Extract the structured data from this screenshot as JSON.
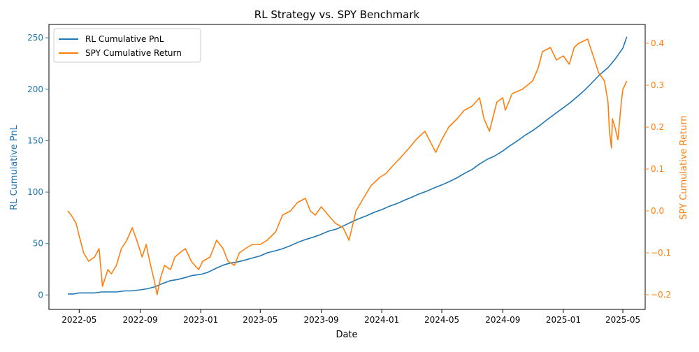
{
  "chart_data": {
    "type": "line",
    "title": "RL Strategy vs. SPY Benchmark",
    "xlabel": "Date",
    "ylabel_left": "RL Cumulative PnL",
    "ylabel_right": "SPY Cumulative Return",
    "x_ticks": [
      "2022-05",
      "2022-09",
      "2023-01",
      "2023-05",
      "2023-09",
      "2024-01",
      "2024-05",
      "2024-09",
      "2025-01",
      "2025-05"
    ],
    "x_range": [
      "2022-03-01",
      "2025-06-15"
    ],
    "y_left_ticks": [
      "0",
      "50",
      "100",
      "150",
      "200",
      "250"
    ],
    "y_left_range": [
      -14,
      263
    ],
    "y_right_ticks": [
      "−0.2",
      "−0.1",
      "0.0",
      "0.1",
      "0.2",
      "0.3",
      "0.4"
    ],
    "y_right_range": [
      -0.235,
      0.445
    ],
    "grid": false,
    "legend_position": "top-left",
    "colors": {
      "rl": "#1f77b4",
      "spy": "#ff7f0e",
      "axis": "#000000"
    },
    "series": [
      {
        "name": "RL Cumulative PnL",
        "axis": "left",
        "x": [
          "2022-04-08",
          "2022-04-20",
          "2022-05-01",
          "2022-05-15",
          "2022-06-01",
          "2022-06-15",
          "2022-07-01",
          "2022-07-15",
          "2022-08-01",
          "2022-08-15",
          "2022-09-01",
          "2022-09-15",
          "2022-10-01",
          "2022-10-15",
          "2022-11-01",
          "2022-11-15",
          "2022-12-01",
          "2022-12-15",
          "2023-01-01",
          "2023-01-15",
          "2023-02-01",
          "2023-02-15",
          "2023-03-01",
          "2023-03-15",
          "2023-04-01",
          "2023-04-15",
          "2023-05-01",
          "2023-05-15",
          "2023-06-01",
          "2023-06-15",
          "2023-07-01",
          "2023-07-15",
          "2023-08-01",
          "2023-08-15",
          "2023-09-01",
          "2023-09-15",
          "2023-10-01",
          "2023-10-15",
          "2023-11-01",
          "2023-11-15",
          "2023-12-01",
          "2023-12-15",
          "2024-01-01",
          "2024-01-15",
          "2024-02-01",
          "2024-02-15",
          "2024-03-01",
          "2024-03-15",
          "2024-04-01",
          "2024-04-15",
          "2024-05-01",
          "2024-05-15",
          "2024-06-01",
          "2024-06-15",
          "2024-07-01",
          "2024-07-15",
          "2024-08-01",
          "2024-08-15",
          "2024-09-01",
          "2024-09-15",
          "2024-10-01",
          "2024-10-15",
          "2024-11-01",
          "2024-11-15",
          "2024-12-01",
          "2024-12-15",
          "2025-01-01",
          "2025-01-15",
          "2025-02-01",
          "2025-02-15",
          "2025-03-01",
          "2025-03-15",
          "2025-04-01",
          "2025-04-15",
          "2025-05-01",
          "2025-05-09"
        ],
        "values": [
          1,
          1,
          2,
          2,
          2,
          3,
          3,
          3,
          4,
          4,
          5,
          6,
          8,
          11,
          14,
          15,
          17,
          19,
          20,
          22,
          26,
          29,
          31,
          32,
          34,
          36,
          38,
          41,
          43,
          45,
          48,
          51,
          54,
          56,
          59,
          62,
          64,
          67,
          71,
          74,
          77,
          80,
          83,
          86,
          89,
          92,
          95,
          98,
          101,
          104,
          107,
          110,
          114,
          118,
          122,
          127,
          132,
          135,
          140,
          145,
          150,
          155,
          160,
          165,
          171,
          176,
          182,
          187,
          194,
          200,
          207,
          214,
          221,
          229,
          240,
          251
        ]
      },
      {
        "name": "SPY Cumulative Return",
        "axis": "right",
        "x": [
          "2022-04-08",
          "2022-04-15",
          "2022-04-25",
          "2022-05-01",
          "2022-05-10",
          "2022-05-20",
          "2022-06-01",
          "2022-06-10",
          "2022-06-17",
          "2022-06-28",
          "2022-07-05",
          "2022-07-15",
          "2022-07-25",
          "2022-08-05",
          "2022-08-16",
          "2022-08-25",
          "2022-09-05",
          "2022-09-13",
          "2022-09-20",
          "2022-09-30",
          "2022-10-05",
          "2022-10-12",
          "2022-10-20",
          "2022-11-01",
          "2022-11-10",
          "2022-11-20",
          "2022-12-01",
          "2022-12-13",
          "2022-12-20",
          "2022-12-28",
          "2023-01-05",
          "2023-01-20",
          "2023-02-02",
          "2023-02-15",
          "2023-02-25",
          "2023-03-10",
          "2023-03-20",
          "2023-04-01",
          "2023-04-15",
          "2023-05-01",
          "2023-05-15",
          "2023-06-01",
          "2023-06-15",
          "2023-07-01",
          "2023-07-15",
          "2023-07-31",
          "2023-08-10",
          "2023-08-20",
          "2023-09-01",
          "2023-09-15",
          "2023-09-30",
          "2023-10-15",
          "2023-10-27",
          "2023-11-10",
          "2023-11-25",
          "2023-12-10",
          "2023-12-28",
          "2024-01-10",
          "2024-01-25",
          "2024-02-10",
          "2024-02-25",
          "2024-03-10",
          "2024-03-28",
          "2024-04-10",
          "2024-04-19",
          "2024-05-01",
          "2024-05-15",
          "2024-06-01",
          "2024-06-15",
          "2024-07-01",
          "2024-07-16",
          "2024-07-25",
          "2024-08-05",
          "2024-08-20",
          "2024-09-01",
          "2024-09-06",
          "2024-09-20",
          "2024-10-10",
          "2024-10-31",
          "2024-11-11",
          "2024-11-20",
          "2024-12-06",
          "2024-12-18",
          "2025-01-01",
          "2025-01-13",
          "2025-01-23",
          "2025-02-01",
          "2025-02-19",
          "2025-03-05",
          "2025-03-13",
          "2025-03-25",
          "2025-04-01",
          "2025-04-04",
          "2025-04-08",
          "2025-04-10",
          "2025-04-15",
          "2025-04-21",
          "2025-04-28",
          "2025-05-01",
          "2025-05-09"
        ],
        "values": [
          0.0,
          -0.01,
          -0.03,
          -0.06,
          -0.1,
          -0.12,
          -0.11,
          -0.09,
          -0.18,
          -0.14,
          -0.15,
          -0.13,
          -0.09,
          -0.07,
          -0.04,
          -0.07,
          -0.11,
          -0.08,
          -0.12,
          -0.17,
          -0.2,
          -0.16,
          -0.13,
          -0.14,
          -0.11,
          -0.1,
          -0.09,
          -0.12,
          -0.13,
          -0.14,
          -0.12,
          -0.11,
          -0.07,
          -0.09,
          -0.12,
          -0.13,
          -0.1,
          -0.09,
          -0.08,
          -0.08,
          -0.07,
          -0.05,
          -0.01,
          0.0,
          0.02,
          0.03,
          0.0,
          -0.01,
          0.01,
          -0.01,
          -0.03,
          -0.04,
          -0.07,
          0.0,
          0.03,
          0.06,
          0.08,
          0.09,
          0.11,
          0.13,
          0.15,
          0.17,
          0.19,
          0.16,
          0.14,
          0.17,
          0.2,
          0.22,
          0.24,
          0.25,
          0.27,
          0.22,
          0.19,
          0.26,
          0.27,
          0.24,
          0.28,
          0.29,
          0.31,
          0.34,
          0.38,
          0.39,
          0.36,
          0.37,
          0.35,
          0.39,
          0.4,
          0.41,
          0.36,
          0.33,
          0.31,
          0.26,
          0.19,
          0.15,
          0.22,
          0.2,
          0.17,
          0.26,
          0.29,
          0.31
        ]
      }
    ]
  }
}
